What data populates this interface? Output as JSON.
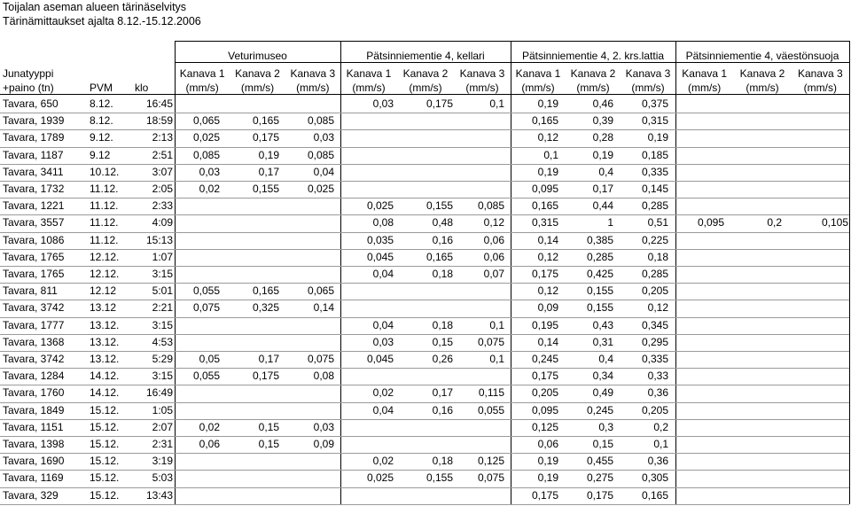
{
  "title": "Toijalan aseman alueen tärinäselvitys",
  "subtitle": "Tärinämittaukset ajalta 8.12.-15.12.2006",
  "groups": [
    "Veturimuseo",
    "Pätsinniementie 4, kellari",
    "Pätsinniementie 4, 2. krs.lattia",
    "Pätsinniementie 4, väestönsuoja"
  ],
  "col_headers": {
    "train_top": "Junatyyppi",
    "train_bottom": "+paino (tn)",
    "date": "PVM",
    "time": "klo",
    "channels": [
      "Kanava 1",
      "Kanava 2",
      "Kanava 3",
      "Kanava 1",
      "Kanava 2",
      "Kanava 3",
      "Kanava 1",
      "Kanava 2",
      "Kanava 3",
      "Kanava 1",
      "Kanava 2",
      "Kanava 3"
    ],
    "unit": "(mm/s)"
  },
  "rows": [
    {
      "train": "Tavara, 650",
      "date": "8.12.",
      "time": "16:45",
      "v": [
        "",
        "",
        "",
        "0,03",
        "0,175",
        "0,1",
        "0,19",
        "0,46",
        "0,375",
        "",
        "",
        ""
      ]
    },
    {
      "train": "Tavara, 1939",
      "date": "8.12.",
      "time": "18:59",
      "v": [
        "0,065",
        "0,165",
        "0,085",
        "",
        "",
        "",
        "0,165",
        "0,39",
        "0,315",
        "",
        "",
        ""
      ]
    },
    {
      "train": "Tavara, 1789",
      "date": "9.12.",
      "time": "2:13",
      "v": [
        "0,025",
        "0,175",
        "0,03",
        "",
        "",
        "",
        "0,12",
        "0,28",
        "0,19",
        "",
        "",
        ""
      ]
    },
    {
      "train": "Tavara, 1187",
      "date": "9.12",
      "time": "2:51",
      "v": [
        "0,085",
        "0,19",
        "0,085",
        "",
        "",
        "",
        "0,1",
        "0,19",
        "0,185",
        "",
        "",
        ""
      ]
    },
    {
      "train": "Tavara, 3411",
      "date": "10.12.",
      "time": "3:07",
      "v": [
        "0,03",
        "0,17",
        "0,04",
        "",
        "",
        "",
        "0,19",
        "0,4",
        "0,335",
        "",
        "",
        ""
      ]
    },
    {
      "train": "Tavara, 1732",
      "date": "11.12.",
      "time": "2:05",
      "v": [
        "0,02",
        "0,155",
        "0,025",
        "",
        "",
        "",
        "0,095",
        "0,17",
        "0,145",
        "",
        "",
        ""
      ]
    },
    {
      "train": "Tavara, 1221",
      "date": "11.12.",
      "time": "2:33",
      "v": [
        "",
        "",
        "",
        "0,025",
        "0,155",
        "0,085",
        "0,165",
        "0,44",
        "0,285",
        "",
        "",
        ""
      ]
    },
    {
      "train": "Tavara, 3557",
      "date": "11.12.",
      "time": "4:09",
      "v": [
        "",
        "",
        "",
        "0,08",
        "0,48",
        "0,12",
        "0,315",
        "1",
        "0,51",
        "0,095",
        "0,2",
        "0,105"
      ]
    },
    {
      "train": "Tavara, 1086",
      "date": "11.12.",
      "time": "15:13",
      "v": [
        "",
        "",
        "",
        "0,035",
        "0,16",
        "0,06",
        "0,14",
        "0,385",
        "0,225",
        "",
        "",
        ""
      ]
    },
    {
      "train": "Tavara, 1765",
      "date": "12.12.",
      "time": "1:07",
      "v": [
        "",
        "",
        "",
        "0,045",
        "0,165",
        "0,06",
        "0,12",
        "0,285",
        "0,18",
        "",
        "",
        ""
      ]
    },
    {
      "train": "Tavara, 1765",
      "date": "12.12.",
      "time": "3:15",
      "v": [
        "",
        "",
        "",
        "0,04",
        "0,18",
        "0,07",
        "0,175",
        "0,425",
        "0,285",
        "",
        "",
        ""
      ]
    },
    {
      "train": "Tavara, 811",
      "date": "12.12",
      "time": "5:01",
      "v": [
        "0,055",
        "0,165",
        "0,065",
        "",
        "",
        "",
        "0,12",
        "0,155",
        "0,205",
        "",
        "",
        ""
      ]
    },
    {
      "train": "Tavara, 3742",
      "date": "13.12",
      "time": "2:21",
      "v": [
        "0,075",
        "0,325",
        "0,14",
        "",
        "",
        "",
        "0,09",
        "0,155",
        "0,12",
        "",
        "",
        ""
      ]
    },
    {
      "train": "Tavara, 1777",
      "date": "13.12.",
      "time": "3:15",
      "v": [
        "",
        "",
        "",
        "0,04",
        "0,18",
        "0,1",
        "0,195",
        "0,43",
        "0,345",
        "",
        "",
        ""
      ]
    },
    {
      "train": "Tavara, 1368",
      "date": "13.12.",
      "time": "4:53",
      "v": [
        "",
        "",
        "",
        "0,03",
        "0,15",
        "0,075",
        "0,14",
        "0,31",
        "0,295",
        "",
        "",
        ""
      ]
    },
    {
      "train": "Tavara, 3742",
      "date": "13.12.",
      "time": "5:29",
      "v": [
        "0,05",
        "0,17",
        "0,075",
        "0,045",
        "0,26",
        "0,1",
        "0,245",
        "0,4",
        "0,335",
        "",
        "",
        ""
      ]
    },
    {
      "train": "Tavara, 1284",
      "date": "14.12.",
      "time": "3:15",
      "v": [
        "0,055",
        "0,175",
        "0,08",
        "",
        "",
        "",
        "0,175",
        "0,34",
        "0,33",
        "",
        "",
        ""
      ]
    },
    {
      "train": "Tavara, 1760",
      "date": "14.12.",
      "time": "16:49",
      "v": [
        "",
        "",
        "",
        "0,02",
        "0,17",
        "0,115",
        "0,205",
        "0,49",
        "0,36",
        "",
        "",
        ""
      ]
    },
    {
      "train": "Tavara, 1849",
      "date": "15.12.",
      "time": "1:05",
      "v": [
        "",
        "",
        "",
        "0,04",
        "0,16",
        "0,055",
        "0,095",
        "0,245",
        "0,205",
        "",
        "",
        ""
      ]
    },
    {
      "train": "Tavara, 1151",
      "date": "15.12.",
      "time": "2:07",
      "v": [
        "0,02",
        "0,15",
        "0,03",
        "",
        "",
        "",
        "0,125",
        "0,3",
        "0,2",
        "",
        "",
        ""
      ]
    },
    {
      "train": "Tavara, 1398",
      "date": "15.12.",
      "time": "2:31",
      "v": [
        "0,06",
        "0,15",
        "0,09",
        "",
        "",
        "",
        "0,06",
        "0,15",
        "0,1",
        "",
        "",
        ""
      ]
    },
    {
      "train": "Tavara, 1690",
      "date": "15.12.",
      "time": "3:19",
      "v": [
        "",
        "",
        "",
        "0,02",
        "0,18",
        "0,125",
        "0,19",
        "0,455",
        "0,36",
        "",
        "",
        ""
      ]
    },
    {
      "train": "Tavara, 1169",
      "date": "15.12.",
      "time": "5:03",
      "v": [
        "",
        "",
        "",
        "0,025",
        "0,155",
        "0,075",
        "0,19",
        "0,275",
        "0,305",
        "",
        "",
        ""
      ]
    },
    {
      "train": "Tavara, 329",
      "date": "15.12.",
      "time": "13:43",
      "v": [
        "",
        "",
        "",
        "",
        "",
        "",
        "0,175",
        "0,175",
        "0,165",
        "",
        "",
        ""
      ]
    }
  ]
}
